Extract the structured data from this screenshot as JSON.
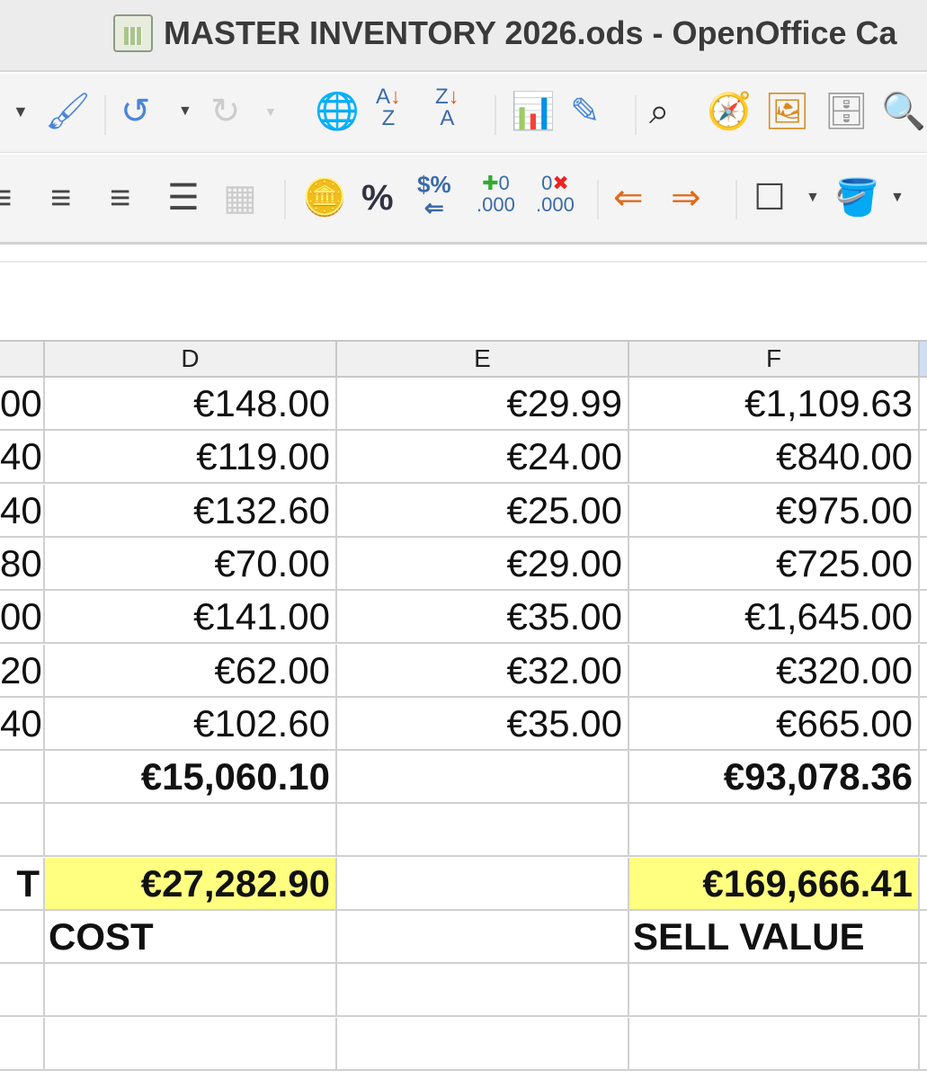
{
  "window": {
    "title": "MASTER INVENTORY 2026.ods - OpenOffice Ca"
  },
  "toolbar1": {
    "icons": [
      "dropdown-arrow-icon",
      "clone-formatting-icon",
      "undo-icon",
      "undo-dropdown-icon",
      "redo-icon",
      "redo-dropdown-icon",
      "hyperlink-icon",
      "sort-ascending-icon",
      "sort-descending-icon",
      "chart-icon",
      "show-draw-functions-icon",
      "find-replace-icon",
      "navigator-icon",
      "gallery-icon",
      "data-sources-icon",
      "zoom-icon"
    ]
  },
  "toolbar2": {
    "icons": [
      "align-left-icon",
      "align-center-icon",
      "align-right-icon",
      "justify-icon",
      "merge-cells-icon",
      "currency-format-icon",
      "percent-format-icon",
      "standard-format-icon",
      "add-decimal-icon",
      "delete-decimal-icon",
      "decrease-indent-icon",
      "increase-indent-icon",
      "borders-icon",
      "background-color-icon"
    ],
    "percent_label": "%"
  },
  "columns": [
    "D",
    "E",
    "F"
  ],
  "rows": [
    {
      "c": "00",
      "d": "€148.00",
      "e": "€29.99",
      "f": "€1,109.63"
    },
    {
      "c": "40",
      "d": "€119.00",
      "e": "€24.00",
      "f": "€840.00"
    },
    {
      "c": "40",
      "d": "€132.60",
      "e": "€25.00",
      "f": "€975.00"
    },
    {
      "c": "80",
      "d": "€70.00",
      "e": "€29.00",
      "f": "€725.00"
    },
    {
      "c": "00",
      "d": "€141.00",
      "e": "€35.00",
      "f": "€1,645.00"
    },
    {
      "c": "20",
      "d": "€62.00",
      "e": "€32.00",
      "f": "€320.00"
    },
    {
      "c": "40",
      "d": "€102.60",
      "e": "€35.00",
      "f": "€665.00"
    }
  ],
  "totals": {
    "d": "€15,060.10",
    "f": "€93,078.36"
  },
  "grand": {
    "c": "T",
    "d": "€27,282.90",
    "f": "€169,666.41",
    "highlight": "#ffff80"
  },
  "labels": {
    "d": "COST",
    "f": "SELL VALUE"
  }
}
